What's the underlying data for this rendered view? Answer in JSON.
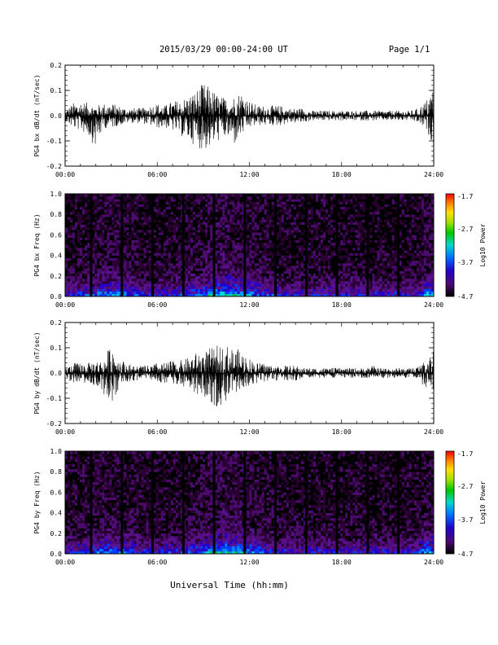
{
  "header": {
    "title": "2015/03/29  00:00-24:00 UT",
    "page": "Page 1/1"
  },
  "x_axis_title": "Universal Time (hh:mm)",
  "colorbar_ticks": [
    "-1.7",
    "-2.7",
    "-3.7",
    "-4.7"
  ],
  "colorbar_label": "Log10 Power",
  "chart_data": [
    {
      "type": "line",
      "ylabel": "PG4 bx dB/dt (nT/sec)",
      "xlim": [
        0,
        24
      ],
      "ylim": [
        -0.2,
        0.2
      ],
      "x_ticks": [
        "00:00",
        "06:00",
        "12:00",
        "18:00",
        "24:00"
      ],
      "y_ticks": [
        "0.2",
        "0.1",
        "0.0",
        "-0.1",
        "-0.2"
      ],
      "envelope_x_hours": [
        0,
        0.5,
        1,
        1.5,
        2,
        2.5,
        3,
        3.5,
        4,
        4.5,
        5,
        5.5,
        6,
        6.5,
        7,
        7.5,
        8,
        8.5,
        9,
        9.5,
        10,
        10.5,
        11,
        11.5,
        12,
        12.5,
        13,
        13.5,
        14,
        14.5,
        15,
        15.5,
        16,
        16.5,
        17,
        17.5,
        18,
        18.5,
        19,
        19.5,
        20,
        20.5,
        21,
        21.5,
        22,
        22.5,
        23,
        23.5,
        24
      ],
      "envelope_max": [
        0.02,
        0.05,
        0.06,
        0.05,
        0.04,
        0.05,
        0.05,
        0.04,
        0.03,
        0.03,
        0.03,
        0.04,
        0.05,
        0.04,
        0.06,
        0.06,
        0.08,
        0.1,
        0.13,
        0.11,
        0.08,
        0.07,
        0.08,
        0.1,
        0.06,
        0.04,
        0.04,
        0.04,
        0.04,
        0.03,
        0.03,
        0.03,
        0.02,
        0.02,
        0.02,
        0.02,
        0.02,
        0.02,
        0.02,
        0.02,
        0.02,
        0.02,
        0.02,
        0.02,
        0.02,
        0.02,
        0.03,
        0.06,
        0.12
      ],
      "envelope_min": [
        -0.02,
        -0.05,
        -0.06,
        -0.08,
        -0.13,
        -0.05,
        -0.05,
        -0.04,
        -0.03,
        -0.03,
        -0.03,
        -0.04,
        -0.05,
        -0.05,
        -0.06,
        -0.08,
        -0.1,
        -0.12,
        -0.14,
        -0.13,
        -0.1,
        -0.09,
        -0.12,
        -0.08,
        -0.05,
        -0.04,
        -0.04,
        -0.04,
        -0.04,
        -0.03,
        -0.03,
        -0.03,
        -0.02,
        -0.02,
        -0.02,
        -0.02,
        -0.02,
        -0.02,
        -0.02,
        -0.02,
        -0.02,
        -0.02,
        -0.02,
        -0.02,
        -0.02,
        -0.02,
        -0.03,
        -0.06,
        -0.12
      ]
    },
    {
      "type": "heatmap",
      "ylabel": "PG4 bx Freq (Hz)",
      "xlim": [
        0,
        24
      ],
      "ylim": [
        0,
        1.0
      ],
      "x_ticks": [
        "00:00",
        "06:00",
        "12:00",
        "18:00",
        "24:00"
      ],
      "y_ticks": [
        "1.0",
        "0.8",
        "0.6",
        "0.4",
        "0.2",
        "0.0"
      ],
      "color_range_log10": [
        -4.7,
        -1.7
      ],
      "data_gaps_hours": [
        1.7,
        3.7,
        5.7,
        7.7,
        9.7,
        11.7,
        13.7,
        15.7,
        17.7,
        19.7,
        21.7
      ]
    },
    {
      "type": "line",
      "ylabel": "PG4 by dB/dt (nT/sec)",
      "xlim": [
        0,
        24
      ],
      "ylim": [
        -0.2,
        0.2
      ],
      "x_ticks": [
        "00:00",
        "06:00",
        "12:00",
        "18:00",
        "24:00"
      ],
      "y_ticks": [
        "0.2",
        "0.1",
        "0.0",
        "-0.1",
        "-0.2"
      ],
      "envelope_x_hours": [
        0,
        0.5,
        1,
        1.5,
        2,
        2.5,
        3,
        3.5,
        4,
        4.5,
        5,
        5.5,
        6,
        6.5,
        7,
        7.5,
        8,
        8.5,
        9,
        9.5,
        10,
        10.5,
        11,
        11.5,
        12,
        12.5,
        13,
        13.5,
        14,
        14.5,
        15,
        15.5,
        16,
        16.5,
        17,
        17.5,
        18,
        18.5,
        19,
        19.5,
        20,
        20.5,
        21,
        21.5,
        22,
        22.5,
        23,
        23.5,
        24
      ],
      "envelope_max": [
        0.02,
        0.04,
        0.04,
        0.04,
        0.05,
        0.05,
        0.12,
        0.06,
        0.04,
        0.03,
        0.03,
        0.03,
        0.04,
        0.04,
        0.05,
        0.05,
        0.06,
        0.08,
        0.09,
        0.1,
        0.11,
        0.11,
        0.1,
        0.09,
        0.06,
        0.04,
        0.04,
        0.03,
        0.03,
        0.03,
        0.03,
        0.02,
        0.02,
        0.02,
        0.02,
        0.02,
        0.02,
        0.02,
        0.02,
        0.02,
        0.03,
        0.02,
        0.02,
        0.02,
        0.02,
        0.02,
        0.03,
        0.05,
        0.1
      ],
      "envelope_min": [
        -0.02,
        -0.04,
        -0.04,
        -0.04,
        -0.05,
        -0.08,
        -0.13,
        -0.06,
        -0.04,
        -0.03,
        -0.03,
        -0.03,
        -0.04,
        -0.04,
        -0.05,
        -0.05,
        -0.06,
        -0.08,
        -0.1,
        -0.12,
        -0.14,
        -0.11,
        -0.1,
        -0.06,
        -0.05,
        -0.04,
        -0.04,
        -0.03,
        -0.03,
        -0.03,
        -0.03,
        -0.02,
        -0.02,
        -0.02,
        -0.02,
        -0.02,
        -0.02,
        -0.02,
        -0.02,
        -0.02,
        -0.02,
        -0.02,
        -0.02,
        -0.02,
        -0.02,
        -0.02,
        -0.03,
        -0.06,
        -0.11
      ]
    },
    {
      "type": "heatmap",
      "ylabel": "PG4 by Freq (Hz)",
      "xlim": [
        0,
        24
      ],
      "ylim": [
        0,
        1.0
      ],
      "x_ticks": [
        "00:00",
        "06:00",
        "12:00",
        "18:00",
        "24:00"
      ],
      "y_ticks": [
        "1.0",
        "0.8",
        "0.6",
        "0.4",
        "0.2",
        "0.0"
      ],
      "color_range_log10": [
        -4.7,
        -1.7
      ],
      "data_gaps_hours": [
        1.7,
        3.7,
        5.7,
        7.7,
        9.7,
        11.7,
        13.7,
        15.7,
        17.7,
        19.7,
        21.7
      ]
    }
  ]
}
